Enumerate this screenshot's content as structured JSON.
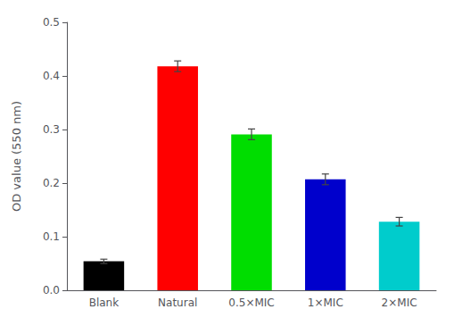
{
  "chart_data": {
    "type": "bar",
    "categories": [
      "Blank",
      "Natural",
      "0.5×MIC",
      "1×MIC",
      "2×MIC"
    ],
    "values": [
      0.054,
      0.418,
      0.291,
      0.207,
      0.128
    ],
    "errors": [
      0.004,
      0.01,
      0.01,
      0.01,
      0.008
    ],
    "colors": [
      "#000000",
      "#FF0000",
      "#00DD00",
      "#0000CC",
      "#00CCCC"
    ],
    "ylabel": "OD value (550 nm)",
    "ylim": [
      0,
      0.5
    ],
    "yticks": [
      {
        "value": 0,
        "label": "0.0"
      },
      0.1,
      0.2,
      0.3,
      0.4,
      0.5
    ],
    "grid": false
  }
}
